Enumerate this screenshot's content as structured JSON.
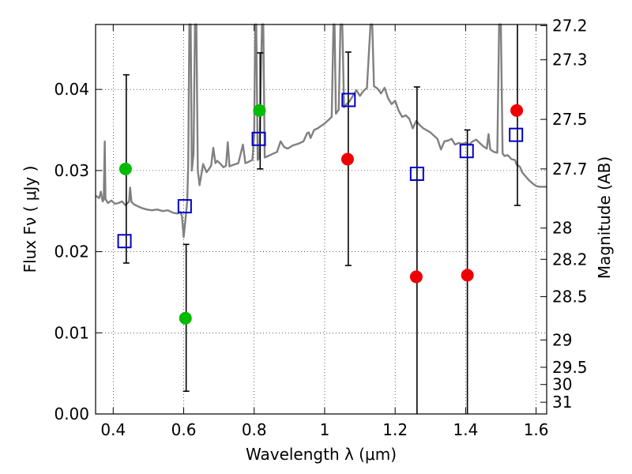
{
  "chart_data": {
    "type": "scatter",
    "xlabel": "Wavelength  λ (μm)",
    "ylabel": "Flux  Fν  ( μJy )",
    "y2label": "Magnitude (AB)",
    "xlim": [
      0.35,
      1.63
    ],
    "ylim": [
      0.0,
      0.048
    ],
    "grid": true,
    "x_ticks": [
      "0.4",
      "0.6",
      "0.8",
      "1",
      "1.2",
      "1.4",
      "1.6"
    ],
    "y_ticks": [
      "0.00",
      "0.01",
      "0.02",
      "0.03",
      "0.04"
    ],
    "y2_ticks": [
      "27.2",
      "27.3",
      "27.5",
      "27.7",
      "28",
      "28.2",
      "28.5",
      "29",
      "29.5",
      "30",
      "31"
    ],
    "colors": {
      "green": "#00bb00",
      "red": "#ee0000",
      "model": "#808080",
      "square": "#0000cc",
      "errorbar": "#000000"
    },
    "series": [
      {
        "marker": "circle-green",
        "points": [
          {
            "x": 0.435,
            "y": 0.0302
          },
          {
            "x": 0.605,
            "y": 0.0118
          },
          {
            "x": 0.815,
            "y": 0.0374
          }
        ]
      },
      {
        "marker": "circle-red",
        "points": [
          {
            "x": 1.065,
            "y": 0.0314
          },
          {
            "x": 1.26,
            "y": 0.0169
          },
          {
            "x": 1.405,
            "y": 0.0171
          },
          {
            "x": 1.545,
            "y": 0.0374
          }
        ]
      },
      {
        "marker": "square-blue",
        "points": [
          {
            "x": 0.432,
            "y": 0.0213
          },
          {
            "x": 0.603,
            "y": 0.0256
          },
          {
            "x": 0.813,
            "y": 0.0339
          },
          {
            "x": 1.068,
            "y": 0.0387
          },
          {
            "x": 1.262,
            "y": 0.0296
          },
          {
            "x": 1.403,
            "y": 0.0324
          },
          {
            "x": 1.543,
            "y": 0.0344
          }
        ]
      }
    ],
    "errorbars": [
      {
        "x": 0.437,
        "ylo": 0.0186,
        "yhi": 0.0418
      },
      {
        "x": 0.607,
        "ylo": 0.0028,
        "yhi": 0.0209
      },
      {
        "x": 0.817,
        "ylo": 0.0302,
        "yhi": 0.0445
      },
      {
        "x": 1.067,
        "ylo": 0.0183,
        "yhi": 0.0446
      },
      {
        "x": 1.262,
        "ylo": 0.0,
        "yhi": 0.0403
      },
      {
        "x": 1.405,
        "ylo": 0.0,
        "yhi": 0.035
      },
      {
        "x": 1.547,
        "ylo": 0.0257,
        "yhi": 0.048
      }
    ],
    "model_spectrum": [
      [
        0.35,
        0.0269
      ],
      [
        0.36,
        0.0266
      ],
      [
        0.365,
        0.0274
      ],
      [
        0.37,
        0.0262
      ],
      [
        0.373,
        0.0264
      ],
      [
        0.376,
        0.0336
      ],
      [
        0.378,
        0.0265
      ],
      [
        0.385,
        0.026
      ],
      [
        0.395,
        0.0263
      ],
      [
        0.405,
        0.0259
      ],
      [
        0.415,
        0.026
      ],
      [
        0.425,
        0.0262
      ],
      [
        0.435,
        0.0257
      ],
      [
        0.445,
        0.0262
      ],
      [
        0.448,
        0.0279
      ],
      [
        0.452,
        0.0261
      ],
      [
        0.46,
        0.0258
      ],
      [
        0.47,
        0.0256
      ],
      [
        0.48,
        0.0254
      ],
      [
        0.495,
        0.0252
      ],
      [
        0.51,
        0.0251
      ],
      [
        0.525,
        0.0252
      ],
      [
        0.54,
        0.025
      ],
      [
        0.555,
        0.0251
      ],
      [
        0.57,
        0.0248
      ],
      [
        0.582,
        0.0247
      ],
      [
        0.59,
        0.0249
      ],
      [
        0.595,
        0.0244
      ],
      [
        0.6,
        0.0218
      ],
      [
        0.605,
        0.024
      ],
      [
        0.61,
        0.0262
      ],
      [
        0.613,
        0.031
      ],
      [
        0.616,
        0.048
      ],
      [
        0.62,
        0.048
      ],
      [
        0.623,
        0.03
      ],
      [
        0.628,
        0.032
      ],
      [
        0.632,
        0.048
      ],
      [
        0.636,
        0.048
      ],
      [
        0.64,
        0.03
      ],
      [
        0.645,
        0.0282
      ],
      [
        0.655,
        0.0308
      ],
      [
        0.665,
        0.0298
      ],
      [
        0.672,
        0.0302
      ],
      [
        0.678,
        0.0306
      ],
      [
        0.684,
        0.0328
      ],
      [
        0.69,
        0.0309
      ],
      [
        0.695,
        0.0312
      ],
      [
        0.705,
        0.0308
      ],
      [
        0.713,
        0.0304
      ],
      [
        0.72,
        0.0306
      ],
      [
        0.725,
        0.0335
      ],
      [
        0.73,
        0.0305
      ],
      [
        0.74,
        0.0307
      ],
      [
        0.755,
        0.0309
      ],
      [
        0.768,
        0.0332
      ],
      [
        0.775,
        0.0309
      ],
      [
        0.785,
        0.0311
      ],
      [
        0.795,
        0.0313
      ],
      [
        0.8,
        0.0343
      ],
      [
        0.803,
        0.048
      ],
      [
        0.806,
        0.048
      ],
      [
        0.81,
        0.0313
      ],
      [
        0.815,
        0.0316
      ],
      [
        0.822,
        0.048
      ],
      [
        0.826,
        0.048
      ],
      [
        0.83,
        0.0316
      ],
      [
        0.84,
        0.0318
      ],
      [
        0.85,
        0.032
      ],
      [
        0.865,
        0.0323
      ],
      [
        0.875,
        0.0336
      ],
      [
        0.885,
        0.0329
      ],
      [
        0.895,
        0.0327
      ],
      [
        0.91,
        0.0331
      ],
      [
        0.925,
        0.0333
      ],
      [
        0.94,
        0.0336
      ],
      [
        0.95,
        0.0346
      ],
      [
        0.955,
        0.0347
      ],
      [
        0.96,
        0.034
      ],
      [
        0.97,
        0.035
      ],
      [
        0.98,
        0.0352
      ],
      [
        0.99,
        0.0355
      ],
      [
        1.0,
        0.0358
      ],
      [
        1.01,
        0.0362
      ],
      [
        1.02,
        0.0366
      ],
      [
        1.025,
        0.048
      ],
      [
        1.028,
        0.048
      ],
      [
        1.032,
        0.037
      ],
      [
        1.04,
        0.0375
      ],
      [
        1.045,
        0.048
      ],
      [
        1.05,
        0.048
      ],
      [
        1.055,
        0.0378
      ],
      [
        1.06,
        0.0381
      ],
      [
        1.07,
        0.0385
      ],
      [
        1.08,
        0.0392
      ],
      [
        1.09,
        0.0399
      ],
      [
        1.1,
        0.0392
      ],
      [
        1.11,
        0.0398
      ],
      [
        1.12,
        0.0402
      ],
      [
        1.13,
        0.048
      ],
      [
        1.135,
        0.048
      ],
      [
        1.14,
        0.0404
      ],
      [
        1.15,
        0.0401
      ],
      [
        1.16,
        0.0395
      ],
      [
        1.17,
        0.0402
      ],
      [
        1.18,
        0.0389
      ],
      [
        1.19,
        0.0382
      ],
      [
        1.2,
        0.0386
      ],
      [
        1.21,
        0.0374
      ],
      [
        1.22,
        0.0366
      ],
      [
        1.23,
        0.0368
      ],
      [
        1.24,
        0.0364
      ],
      [
        1.25,
        0.0352
      ],
      [
        1.26,
        0.0361
      ],
      [
        1.27,
        0.0356
      ],
      [
        1.28,
        0.0352
      ],
      [
        1.3,
        0.0347
      ],
      [
        1.31,
        0.0343
      ],
      [
        1.32,
        0.0339
      ],
      [
        1.33,
        0.0326
      ],
      [
        1.34,
        0.0336
      ],
      [
        1.35,
        0.0337
      ],
      [
        1.36,
        0.0339
      ],
      [
        1.37,
        0.0332
      ],
      [
        1.38,
        0.0334
      ],
      [
        1.39,
        0.0333
      ],
      [
        1.4,
        0.0334
      ],
      [
        1.41,
        0.0332
      ],
      [
        1.42,
        0.0336
      ],
      [
        1.43,
        0.0338
      ],
      [
        1.44,
        0.0334
      ],
      [
        1.45,
        0.033
      ],
      [
        1.46,
        0.0327
      ],
      [
        1.465,
        0.0345
      ],
      [
        1.47,
        0.0326
      ],
      [
        1.48,
        0.0323
      ],
      [
        1.49,
        0.0322
      ],
      [
        1.495,
        0.048
      ],
      [
        1.5,
        0.048
      ],
      [
        1.505,
        0.0321
      ],
      [
        1.51,
        0.0318
      ],
      [
        1.52,
        0.0319
      ],
      [
        1.53,
        0.0314
      ],
      [
        1.54,
        0.0313
      ],
      [
        1.545,
        0.0307
      ],
      [
        1.55,
        0.0306
      ],
      [
        1.555,
        0.0304
      ],
      [
        1.56,
        0.0298
      ],
      [
        1.57,
        0.0293
      ],
      [
        1.58,
        0.0288
      ],
      [
        1.59,
        0.0284
      ],
      [
        1.6,
        0.0281
      ],
      [
        1.61,
        0.028
      ],
      [
        1.63,
        0.028
      ]
    ]
  }
}
